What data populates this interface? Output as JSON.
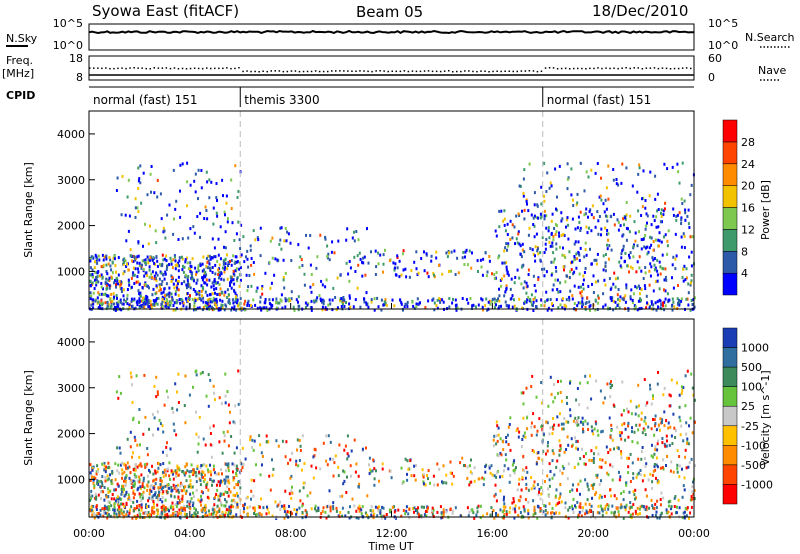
{
  "header": {
    "station": "Syowa East (fitACF)",
    "beam": "Beam 05",
    "date": "18/Dec/2010"
  },
  "side_labels": {
    "nsky": "N.Sky",
    "nsearch": "N.Search",
    "freq_line1": "Freq.",
    "freq_line2": "[MHz]",
    "nave": "Nave",
    "cpid": "CPID"
  },
  "noise_panel": {
    "left_ticks": [
      "10^5",
      "10^0"
    ],
    "right_ticks": [
      "10^5",
      "10^0"
    ]
  },
  "freq_panel": {
    "left_ticks": [
      "18",
      "8"
    ],
    "right_ticks": [
      "60",
      "0"
    ]
  },
  "cpid_segments": [
    {
      "label": "normal (fast) 151",
      "start_hour": 0,
      "end_hour": 6
    },
    {
      "label": "themis 3300",
      "start_hour": 6,
      "end_hour": 18
    },
    {
      "label": "normal (fast) 151",
      "start_hour": 18,
      "end_hour": 24
    }
  ],
  "chart_data": [
    {
      "type": "heatmap",
      "title": "Power",
      "xlabel": "Time UT",
      "ylabel": "Slant Range [km]",
      "x_ticks": [
        "00:00",
        "04:00",
        "08:00",
        "12:00",
        "16:00",
        "20:00",
        "00:00"
      ],
      "y_ticks": [
        "1000",
        "2000",
        "3000",
        "4000"
      ],
      "xlim_hours": [
        0,
        24
      ],
      "ylim_km": [
        180,
        4500
      ],
      "colorbar": {
        "label": "Power [dB]",
        "ticks": [
          "4",
          "8",
          "12",
          "16",
          "20",
          "24",
          "28"
        ],
        "colors": [
          "#0000ff",
          "#2d5aa8",
          "#3d9a6a",
          "#7ec850",
          "#f2c200",
          "#ff8c00",
          "#ff4400",
          "#ff0000"
        ]
      },
      "mode_boundaries_hours": [
        6,
        18
      ]
    },
    {
      "type": "heatmap",
      "title": "Velocity",
      "xlabel": "Time UT",
      "ylabel": "Slant Range [km]",
      "x_ticks": [
        "00:00",
        "04:00",
        "08:00",
        "12:00",
        "16:00",
        "20:00",
        "00:00"
      ],
      "y_ticks": [
        "1000",
        "2000",
        "3000",
        "4000"
      ],
      "xlim_hours": [
        0,
        24
      ],
      "ylim_km": [
        180,
        4500
      ],
      "colorbar": {
        "label": "Velocity [m s^-1]",
        "ticks": [
          "1000",
          "500",
          "100",
          "25",
          "-25",
          "-100",
          "-500",
          "-1000"
        ],
        "colors": [
          "#1a3cb4",
          "#2f6fa0",
          "#3c8a5a",
          "#66c43c",
          "#c8c8c8",
          "#ffc000",
          "#ff8c00",
          "#ff4400",
          "#ff0000"
        ]
      },
      "mode_boundaries_hours": [
        6,
        18
      ]
    }
  ]
}
